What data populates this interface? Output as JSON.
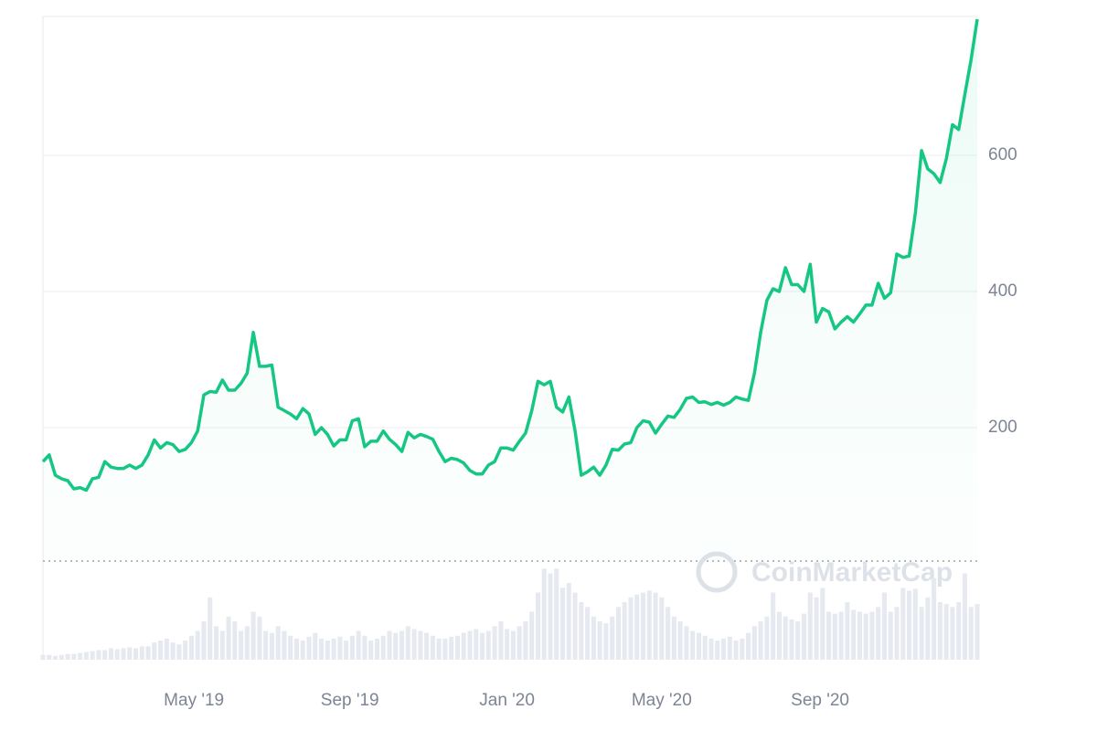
{
  "chart_data": {
    "type": "line",
    "watermark": "CoinMarketCap",
    "xlim": [
      0,
      151
    ],
    "xticks": [
      {
        "value": 24.4,
        "label": "May '19"
      },
      {
        "value": 49.6,
        "label": "Sep '19"
      },
      {
        "value": 75,
        "label": "Jan '20"
      },
      {
        "value": 100,
        "label": "May '20"
      },
      {
        "value": 125.6,
        "label": "Sep '20"
      }
    ],
    "ylim": [
      0,
      804
    ],
    "yticks": [
      200,
      400,
      600
    ],
    "y2lim": [
      0,
      100
    ],
    "grid": true,
    "series": [
      {
        "color": "#16c784",
        "values": [
          150,
          160,
          130,
          125,
          122,
          110,
          112,
          108,
          125,
          127,
          150,
          142,
          140,
          140,
          145,
          140,
          145,
          160,
          182,
          170,
          178,
          175,
          165,
          168,
          178,
          195,
          248,
          253,
          252,
          270,
          255,
          255,
          265,
          280,
          340,
          290,
          290,
          292,
          230,
          225,
          220,
          213,
          228,
          220,
          190,
          200,
          190,
          173,
          182,
          182,
          210,
          213,
          172,
          180,
          180,
          195,
          183,
          175,
          165,
          193,
          185,
          190,
          187,
          183,
          165,
          150,
          155,
          153,
          148,
          137,
          132,
          132,
          145,
          150,
          170,
          170,
          167,
          180,
          192,
          225,
          268,
          263,
          268,
          230,
          223,
          245,
          195,
          130,
          135,
          142,
          130,
          145,
          168,
          167,
          176,
          178,
          200,
          210,
          208,
          192,
          205,
          217,
          215,
          227,
          243,
          245,
          237,
          238,
          234,
          237,
          233,
          237,
          245,
          242,
          240,
          280,
          340,
          387,
          404,
          400,
          435,
          410,
          410,
          400,
          440,
          355,
          375,
          370,
          345,
          355,
          363,
          355,
          367,
          380,
          380,
          412,
          390,
          398,
          455,
          450,
          452,
          515,
          607,
          580,
          573,
          560,
          595,
          645,
          638,
          690,
          740,
          800
        ]
      },
      {
        "type": "bar",
        "axis": "y2",
        "color": "#e6eaf0",
        "values": [
          5,
          5,
          4,
          5,
          6,
          6,
          7,
          8,
          9,
          10,
          10,
          12,
          11,
          12,
          13,
          12,
          14,
          14,
          18,
          20,
          22,
          18,
          16,
          20,
          25,
          30,
          40,
          65,
          35,
          30,
          45,
          40,
          30,
          35,
          50,
          45,
          30,
          28,
          35,
          30,
          25,
          22,
          20,
          24,
          28,
          22,
          20,
          22,
          24,
          20,
          25,
          30,
          25,
          20,
          22,
          25,
          30,
          28,
          30,
          35,
          32,
          30,
          28,
          25,
          22,
          22,
          24,
          25,
          28,
          30,
          32,
          28,
          30,
          35,
          40,
          32,
          30,
          35,
          40,
          50,
          70,
          95,
          90,
          95,
          75,
          80,
          70,
          60,
          55,
          45,
          40,
          38,
          45,
          55,
          60,
          65,
          68,
          70,
          72,
          70,
          65,
          55,
          45,
          40,
          35,
          30,
          28,
          25,
          22,
          20,
          22,
          24,
          20,
          22,
          28,
          35,
          40,
          45,
          70,
          50,
          45,
          42,
          40,
          48,
          70,
          65,
          75,
          50,
          48,
          50,
          60,
          52,
          50,
          48,
          50,
          55,
          70,
          50,
          55,
          75,
          72,
          74,
          55,
          65,
          85,
          60,
          58,
          55,
          60,
          90,
          55,
          58
        ]
      }
    ]
  }
}
